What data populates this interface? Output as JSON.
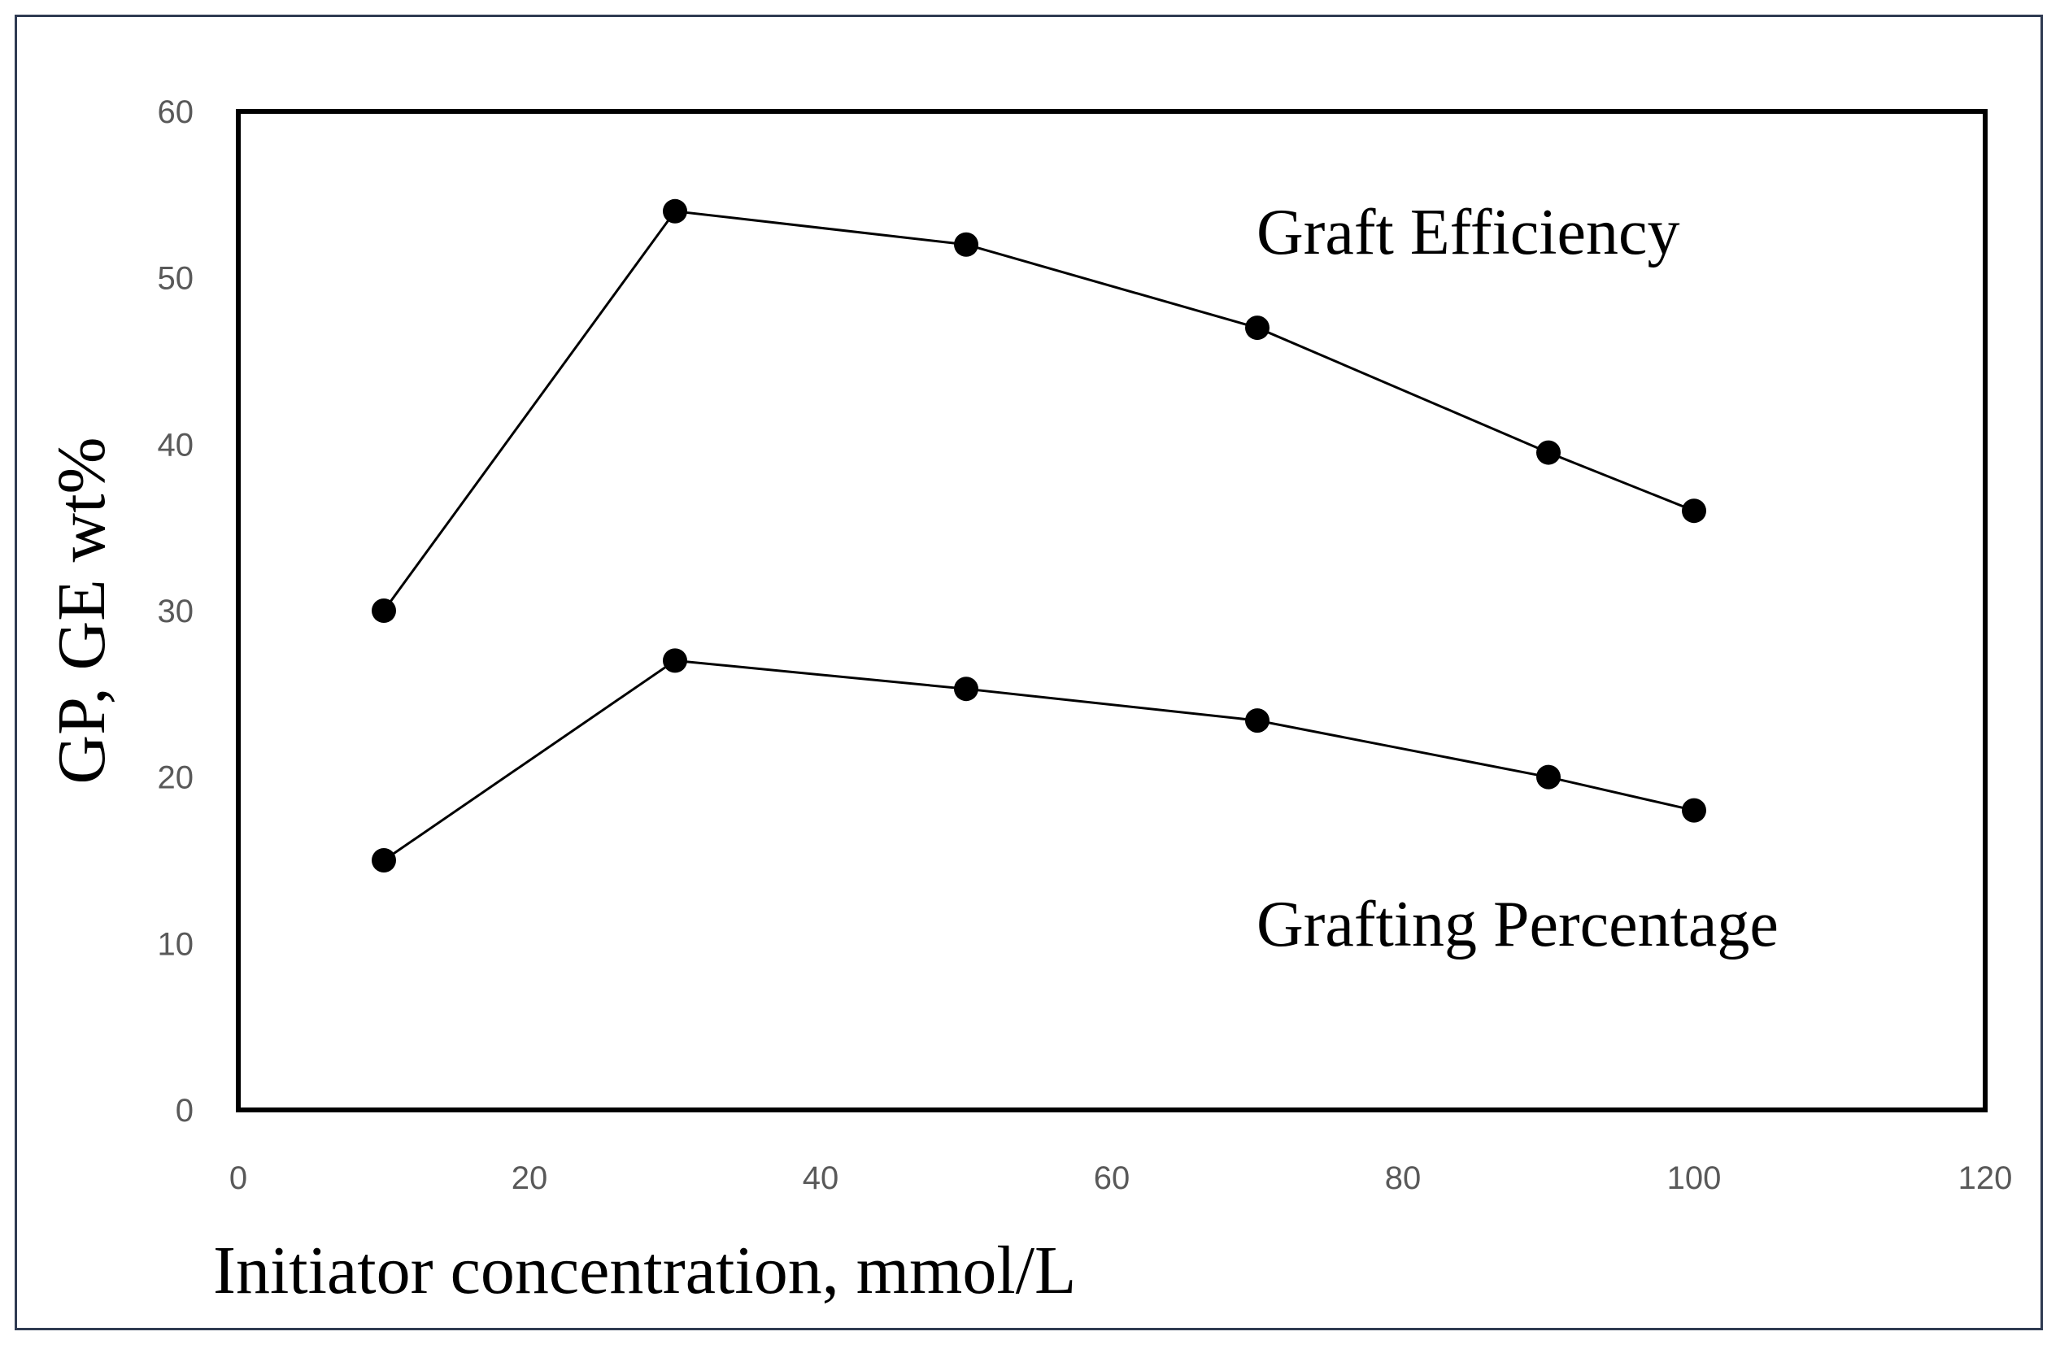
{
  "chart_data": {
    "type": "line",
    "title": "",
    "xlabel": "Initiator concentration, mmol/L",
    "ylabel": "GP, GE wt%",
    "xlim": [
      0,
      120
    ],
    "ylim": [
      0,
      60
    ],
    "x_ticks": [
      0,
      20,
      40,
      60,
      80,
      100,
      120
    ],
    "y_ticks": [
      0,
      10,
      20,
      30,
      40,
      50,
      60
    ],
    "grid": false,
    "legend": "none",
    "x": [
      10,
      30,
      50,
      70,
      90,
      100
    ],
    "series": [
      {
        "name": "Graft Efficiency",
        "values": [
          30,
          54,
          52,
          47,
          39.5,
          36
        ]
      },
      {
        "name": "Grafting Percentage",
        "values": [
          15,
          27,
          25.3,
          23.4,
          20,
          18
        ]
      }
    ],
    "annotations": [
      "Graft Efficiency",
      "Grafting Percentage"
    ]
  },
  "style": {
    "line_color": "#000000",
    "marker_color": "#000000",
    "tick_color": "#595959",
    "frame_color": "#2f3b52"
  }
}
